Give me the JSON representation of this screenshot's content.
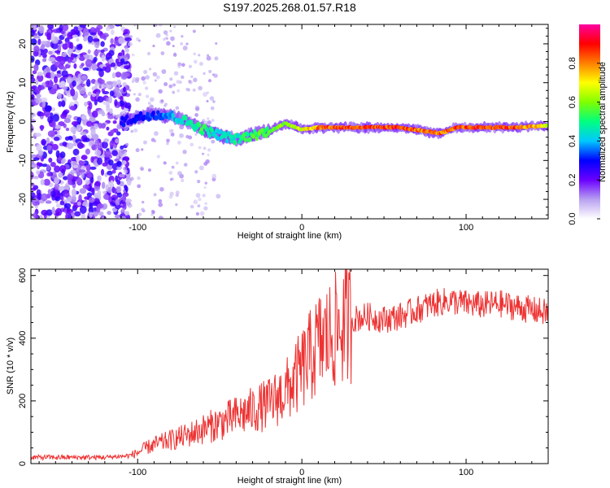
{
  "chart_data": [
    {
      "type": "heatmap",
      "title": "S197.2025.268.01.57.R18",
      "xlabel": "Height of straight line (km)",
      "ylabel": "Frequency (Hz)",
      "xlim": [
        -165,
        150
      ],
      "ylim": [
        -25,
        25
      ],
      "xticks": [
        -100,
        0,
        100
      ],
      "yticks": [
        -20,
        -10,
        0,
        10,
        20
      ],
      "colorbar": {
        "label": "Normalized spectral amplitude",
        "range": [
          0,
          1
        ],
        "ticks": [
          "0.0",
          "0.2",
          "0.4",
          "0.6",
          "0.8"
        ],
        "colors": [
          "#ffffff",
          "#b8a0f0",
          "#6a00ff",
          "#0000ff",
          "#00c8ff",
          "#00ff80",
          "#80ff00",
          "#ffff00",
          "#ff8000",
          "#ff0000",
          "#ff00a0"
        ]
      },
      "ridge": {
        "x": [
          -110,
          -100,
          -90,
          -80,
          -70,
          -60,
          -50,
          -40,
          -30,
          -20,
          -10,
          0,
          10,
          20,
          40,
          60,
          75,
          85,
          95,
          110,
          130,
          150
        ],
        "freq": [
          0,
          1,
          2,
          1.5,
          0,
          -2,
          -3.5,
          -4.5,
          -3.5,
          -2.5,
          -0.5,
          -2,
          -1.5,
          -1.5,
          -1.5,
          -1.5,
          -2.5,
          -3,
          -1.5,
          -1.5,
          -1.5,
          -1
        ],
        "amplitude": [
          0.3,
          0.3,
          0.35,
          0.4,
          0.5,
          0.55,
          0.45,
          0.5,
          0.55,
          0.6,
          0.65,
          0.7,
          0.85,
          0.9,
          0.9,
          0.9,
          0.85,
          0.85,
          0.9,
          0.9,
          0.9,
          0.7
        ]
      }
    },
    {
      "type": "line",
      "title": "",
      "xlabel": "Height of straight line (km)",
      "ylabel": "SNR (10 * v/v)",
      "xlim": [
        -165,
        150
      ],
      "ylim": [
        0,
        620
      ],
      "xticks": [
        -100,
        0,
        100
      ],
      "yticks": [
        0,
        200,
        400,
        600
      ],
      "color": "#ee3333",
      "series": [
        {
          "name": "SNR",
          "x": [
            -165,
            -140,
            -120,
            -105,
            -100,
            -95,
            -90,
            -80,
            -70,
            -60,
            -50,
            -40,
            -30,
            -20,
            -10,
            -5,
            0,
            5,
            10,
            15,
            20,
            30,
            40,
            50,
            60,
            70,
            80,
            90,
            100,
            110,
            120,
            130,
            140,
            150
          ],
          "y": [
            20,
            20,
            20,
            25,
            35,
            50,
            60,
            75,
            90,
            110,
            130,
            150,
            170,
            190,
            230,
            260,
            300,
            340,
            380,
            400,
            420,
            460,
            470,
            460,
            470,
            490,
            510,
            520,
            510,
            505,
            510,
            500,
            490,
            480
          ]
        }
      ]
    }
  ]
}
